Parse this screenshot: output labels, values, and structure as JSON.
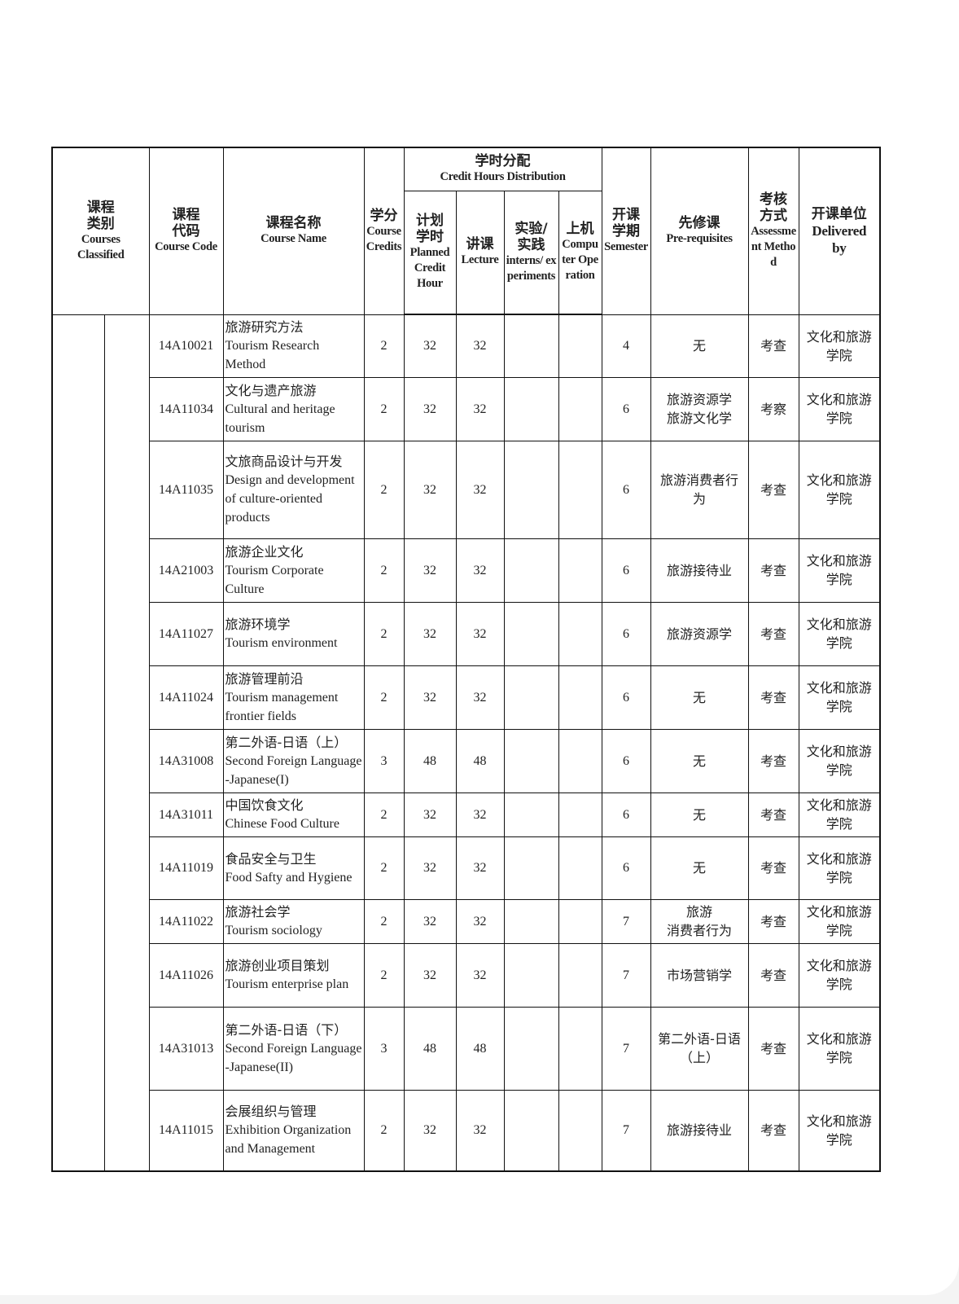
{
  "header": {
    "category": {
      "cn": "课程类别",
      "en": "Courses Classified"
    },
    "code": {
      "cn": "课程代码",
      "en": "Course Code"
    },
    "name": {
      "cn": "课程名称",
      "en": "Course Name"
    },
    "credits": {
      "cn": "学分",
      "en": "Course Credits"
    },
    "distribution": {
      "cn": "学时分配",
      "en": "Credit Hours Distribution"
    },
    "planned": {
      "cn": "计划学时",
      "en": "Planned Credit Hour"
    },
    "lecture": {
      "cn": "讲课",
      "en": "Lecture"
    },
    "practice": {
      "cn": "实验/实践",
      "en": "interns/ experiments"
    },
    "computer": {
      "cn": "上机",
      "en": "Computer Operation"
    },
    "semester": {
      "cn": "开课学期",
      "en": "Semester"
    },
    "prereq": {
      "cn": "先修课",
      "en": "Pre-requisites"
    },
    "assessment": {
      "cn": "考核方式",
      "en": "Assessment Method"
    },
    "delivered": {
      "cn": "开课单位",
      "en": "Delivered by"
    }
  },
  "rows": [
    {
      "code": "14A10021",
      "name_cn": "旅游研究方法",
      "name_en": "Tourism Research Method",
      "credits": "2",
      "planned": "32",
      "lecture": "32",
      "practice": "",
      "computer": "",
      "semester": "4",
      "prereq": "无",
      "assessment": "考查",
      "delivered": "文化和旅游\n学院"
    },
    {
      "code": "14A11034",
      "name_cn": "文化与遗产旅游",
      "name_en": "Cultural and heritage tourism",
      "credits": "2",
      "planned": "32",
      "lecture": "32",
      "practice": "",
      "computer": "",
      "semester": "6",
      "prereq": "旅游资源学\n旅游文化学",
      "assessment": "考察",
      "delivered": "文化和旅游\n学院"
    },
    {
      "code": "14A11035",
      "name_cn": "文旅商品设计与开发",
      "name_en": "Design and development of culture-oriented products",
      "credits": "2",
      "planned": "32",
      "lecture": "32",
      "practice": "",
      "computer": "",
      "semester": "6",
      "prereq": "旅游消费者行\n为",
      "assessment": "考查",
      "delivered": "文化和旅游\n学院"
    },
    {
      "code": "14A21003",
      "name_cn": "旅游企业文化",
      "name_en": "Tourism Corporate Culture",
      "credits": "2",
      "planned": "32",
      "lecture": "32",
      "practice": "",
      "computer": "",
      "semester": "6",
      "prereq": "旅游接待业",
      "assessment": "考查",
      "delivered": "文化和旅游\n学院"
    },
    {
      "code": "14A11027",
      "name_cn": "旅游环境学",
      "name_en": "Tourism environment",
      "credits": "2",
      "planned": "32",
      "lecture": "32",
      "practice": "",
      "computer": "",
      "semester": "6",
      "prereq": "旅游资源学",
      "assessment": "考查",
      "delivered": "文化和旅游\n学院"
    },
    {
      "code": "14A11024",
      "name_cn": "旅游管理前沿",
      "name_en": "Tourism management frontier fields",
      "credits": "2",
      "planned": "32",
      "lecture": "32",
      "practice": "",
      "computer": "",
      "semester": "6",
      "prereq": "无",
      "assessment": "考查",
      "delivered": "文化和旅游\n学院"
    },
    {
      "code": "14A31008",
      "name_cn": "第二外语-日语（上）",
      "name_en": "Second Foreign Language -Japanese(I)",
      "credits": "3",
      "planned": "48",
      "lecture": "48",
      "practice": "",
      "computer": "",
      "semester": "6",
      "prereq": "无",
      "assessment": "考查",
      "delivered": "文化和旅游\n学院"
    },
    {
      "code": "14A31011",
      "name_cn": "中国饮食文化",
      "name_en": "Chinese Food Culture",
      "credits": "2",
      "planned": "32",
      "lecture": "32",
      "practice": "",
      "computer": "",
      "semester": "6",
      "prereq": "无",
      "assessment": "考查",
      "delivered": "文化和旅游\n学院"
    },
    {
      "code": "14A11019",
      "name_cn": "食品安全与卫生",
      "name_en": "Food Safty and Hygiene",
      "credits": "2",
      "planned": "32",
      "lecture": "32",
      "practice": "",
      "computer": "",
      "semester": "6",
      "prereq": "无",
      "assessment": "考查",
      "delivered": "文化和旅游\n学院"
    },
    {
      "code": "14A11022",
      "name_cn": "旅游社会学",
      "name_en": "Tourism sociology",
      "credits": "2",
      "planned": "32",
      "lecture": "32",
      "practice": "",
      "computer": "",
      "semester": "7",
      "prereq": "旅游\n消费者行为",
      "assessment": "考查",
      "delivered": "文化和旅游\n学院"
    },
    {
      "code": "14A11026",
      "name_cn": "旅游创业项目策划",
      "name_en": "Tourism enterprise plan",
      "credits": "2",
      "planned": "32",
      "lecture": "32",
      "practice": "",
      "computer": "",
      "semester": "7",
      "prereq": "市场营销学",
      "assessment": "考查",
      "delivered": "文化和旅游\n学院"
    },
    {
      "code": "14A31013",
      "name_cn": "第二外语-日语（下）",
      "name_en": "Second Foreign Language -Japanese(II)",
      "credits": "3",
      "planned": "48",
      "lecture": "48",
      "practice": "",
      "computer": "",
      "semester": "7",
      "prereq": "第二外语-日语\n（上）",
      "assessment": "考查",
      "delivered": "文化和旅游\n学院"
    },
    {
      "code": "14A11015",
      "name_cn": "会展组织与管理",
      "name_en": "Exhibition Organization and Management",
      "credits": "2",
      "planned": "32",
      "lecture": "32",
      "practice": "",
      "computer": "",
      "semester": "7",
      "prereq": "旅游接待业",
      "assessment": "考查",
      "delivered": "文化和旅游\n学院"
    }
  ]
}
